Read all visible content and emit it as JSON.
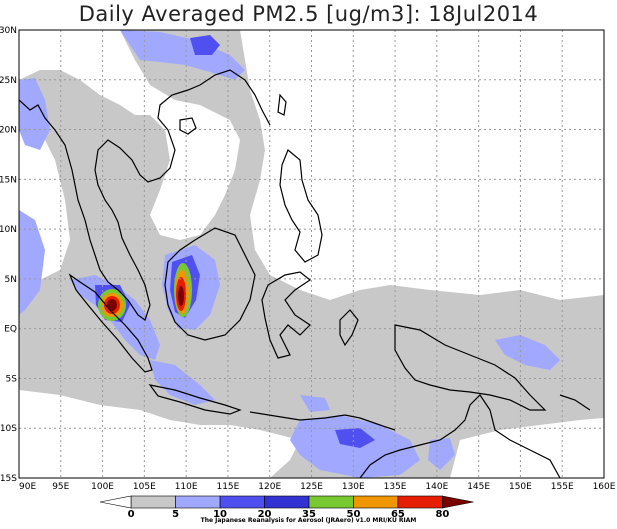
{
  "title": "Daily Averaged PM2.5 [ug/m3]: 18Jul2014",
  "lat_labels": [
    "30N",
    "25N",
    "20N",
    "15N",
    "10N",
    "5N",
    "EQ",
    "5S",
    "10S",
    "15S"
  ],
  "lon_labels": [
    "90E",
    "95E",
    "100E",
    "105E",
    "110E",
    "115E",
    "120E",
    "125E",
    "130E",
    "135E",
    "140E",
    "145E",
    "150E",
    "155E",
    "160E"
  ],
  "colorbar": {
    "levels": [
      "0",
      "5",
      "10",
      "20",
      "35",
      "50",
      "65",
      "80"
    ],
    "colors": [
      "#ffffff",
      "#c8c8c8",
      "#a0a8ff",
      "#5050f0",
      "#3232d2",
      "#78c832",
      "#f09600",
      "#e61e00",
      "#780000"
    ]
  },
  "credit": "The Japanese Reanalysis for Aerosol (JRAero) v1.0 MRI/KU RIAM"
}
